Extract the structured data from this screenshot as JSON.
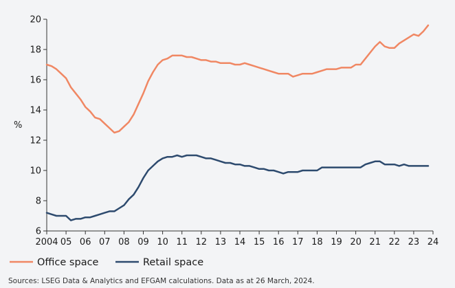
{
  "chart_data": {
    "type": "line",
    "title": "",
    "xlabel": "",
    "ylabel": "%",
    "xlim": [
      2004,
      2024
    ],
    "ylim": [
      6,
      20
    ],
    "x_ticks": [
      "2004",
      "05",
      "06",
      "07",
      "08",
      "09",
      "10",
      "11",
      "12",
      "13",
      "14",
      "15",
      "16",
      "17",
      "18",
      "19",
      "20",
      "21",
      "22",
      "23",
      "24"
    ],
    "y_ticks": [
      6,
      8,
      10,
      12,
      14,
      16,
      18,
      20
    ],
    "grid": false,
    "legend_position": "bottom-left",
    "series": [
      {
        "name": "Office space",
        "color": "#f08763",
        "x": [
          2004.0,
          2004.25,
          2004.5,
          2004.75,
          2005.0,
          2005.25,
          2005.5,
          2005.75,
          2006.0,
          2006.25,
          2006.5,
          2006.75,
          2007.0,
          2007.25,
          2007.5,
          2007.75,
          2008.0,
          2008.25,
          2008.5,
          2008.75,
          2009.0,
          2009.25,
          2009.5,
          2009.75,
          2010.0,
          2010.25,
          2010.5,
          2010.75,
          2011.0,
          2011.25,
          2011.5,
          2011.75,
          2012.0,
          2012.25,
          2012.5,
          2012.75,
          2013.0,
          2013.25,
          2013.5,
          2013.75,
          2014.0,
          2014.25,
          2014.5,
          2014.75,
          2015.0,
          2015.25,
          2015.5,
          2015.75,
          2016.0,
          2016.25,
          2016.5,
          2016.75,
          2017.0,
          2017.25,
          2017.5,
          2017.75,
          2018.0,
          2018.25,
          2018.5,
          2018.75,
          2019.0,
          2019.25,
          2019.5,
          2019.75,
          2020.0,
          2020.25,
          2020.5,
          2020.75,
          2021.0,
          2021.25,
          2021.5,
          2021.75,
          2022.0,
          2022.25,
          2022.5,
          2022.75,
          2023.0,
          2023.25,
          2023.5,
          2023.75
        ],
        "values": [
          17.0,
          16.9,
          16.7,
          16.4,
          16.1,
          15.5,
          15.1,
          14.7,
          14.2,
          13.9,
          13.5,
          13.4,
          13.1,
          12.8,
          12.5,
          12.6,
          12.9,
          13.2,
          13.7,
          14.4,
          15.1,
          15.9,
          16.5,
          17.0,
          17.3,
          17.4,
          17.6,
          17.6,
          17.6,
          17.5,
          17.5,
          17.4,
          17.3,
          17.3,
          17.2,
          17.2,
          17.1,
          17.1,
          17.1,
          17.0,
          17.0,
          17.1,
          17.0,
          16.9,
          16.8,
          16.7,
          16.6,
          16.5,
          16.4,
          16.4,
          16.4,
          16.2,
          16.3,
          16.4,
          16.4,
          16.4,
          16.5,
          16.6,
          16.7,
          16.7,
          16.7,
          16.8,
          16.8,
          16.8,
          17.0,
          17.0,
          17.4,
          17.8,
          18.2,
          18.5,
          18.2,
          18.1,
          18.1,
          18.4,
          18.6,
          18.8,
          19.0,
          18.9,
          19.2,
          19.6
        ]
      },
      {
        "name": "Retail space",
        "color": "#2d4a6e",
        "x": [
          2004.0,
          2004.25,
          2004.5,
          2004.75,
          2005.0,
          2005.25,
          2005.5,
          2005.75,
          2006.0,
          2006.25,
          2006.5,
          2006.75,
          2007.0,
          2007.25,
          2007.5,
          2007.75,
          2008.0,
          2008.25,
          2008.5,
          2008.75,
          2009.0,
          2009.25,
          2009.5,
          2009.75,
          2010.0,
          2010.25,
          2010.5,
          2010.75,
          2011.0,
          2011.25,
          2011.5,
          2011.75,
          2012.0,
          2012.25,
          2012.5,
          2012.75,
          2013.0,
          2013.25,
          2013.5,
          2013.75,
          2014.0,
          2014.25,
          2014.5,
          2014.75,
          2015.0,
          2015.25,
          2015.5,
          2015.75,
          2016.0,
          2016.25,
          2016.5,
          2016.75,
          2017.0,
          2017.25,
          2017.5,
          2017.75,
          2018.0,
          2018.25,
          2018.5,
          2018.75,
          2019.0,
          2019.25,
          2019.5,
          2019.75,
          2020.0,
          2020.25,
          2020.5,
          2020.75,
          2021.0,
          2021.25,
          2021.5,
          2021.75,
          2022.0,
          2022.25,
          2022.5,
          2022.75,
          2023.0,
          2023.25,
          2023.5,
          2023.75
        ],
        "values": [
          7.2,
          7.1,
          7.0,
          7.0,
          7.0,
          6.7,
          6.8,
          6.8,
          6.9,
          6.9,
          7.0,
          7.1,
          7.2,
          7.3,
          7.3,
          7.5,
          7.7,
          8.1,
          8.4,
          8.9,
          9.5,
          10.0,
          10.3,
          10.6,
          10.8,
          10.9,
          10.9,
          11.0,
          10.9,
          11.0,
          11.0,
          11.0,
          10.9,
          10.8,
          10.8,
          10.7,
          10.6,
          10.5,
          10.5,
          10.4,
          10.4,
          10.3,
          10.3,
          10.2,
          10.1,
          10.1,
          10.0,
          10.0,
          9.9,
          9.8,
          9.9,
          9.9,
          9.9,
          10.0,
          10.0,
          10.0,
          10.0,
          10.2,
          10.2,
          10.2,
          10.2,
          10.2,
          10.2,
          10.2,
          10.2,
          10.2,
          10.4,
          10.5,
          10.6,
          10.6,
          10.4,
          10.4,
          10.4,
          10.3,
          10.4,
          10.3,
          10.3,
          10.3,
          10.3,
          10.3
        ]
      }
    ]
  },
  "legend": {
    "office_label": "Office space",
    "retail_label": "Retail space"
  },
  "source_note": "Sources: LSEG Data & Analytics and EFGAM calculations. Data as at 26 March, 2024."
}
